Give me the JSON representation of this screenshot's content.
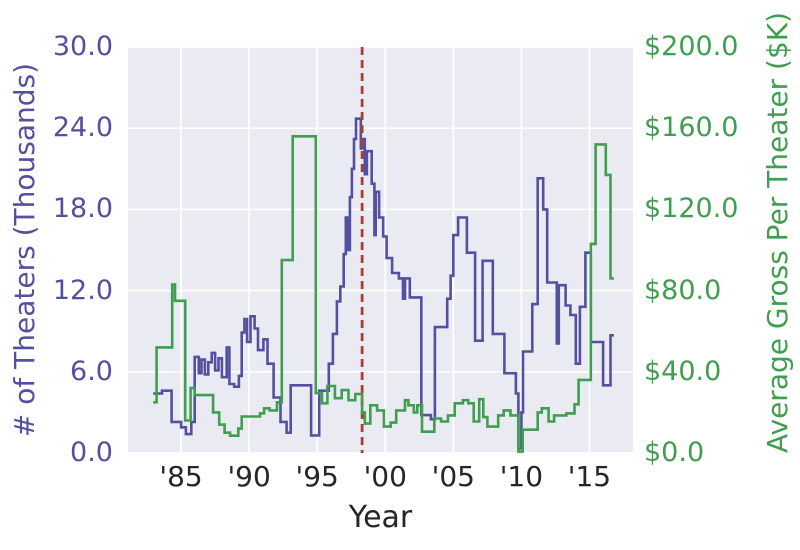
{
  "chart_data": {
    "type": "line",
    "subtype": "step-post",
    "title": "",
    "xlabel": "Year",
    "grid": true,
    "legend": false,
    "x_range": [
      1981.1,
      2018.2
    ],
    "data_end_x": 2016.8,
    "x_ticks": [
      {
        "x": 1985,
        "label": "'85"
      },
      {
        "x": 1990,
        "label": "'90"
      },
      {
        "x": 1995,
        "label": "'95"
      },
      {
        "x": 2000,
        "label": "'00"
      },
      {
        "x": 2005,
        "label": "'05"
      },
      {
        "x": 2010,
        "label": "'10"
      },
      {
        "x": 2015,
        "label": "'15"
      }
    ],
    "axes": {
      "left": {
        "label": "# of Theaters (Thousands)",
        "lim": [
          0,
          30
        ],
        "color": "#53519F",
        "ticks": [
          {
            "v": 0,
            "label": "0.0"
          },
          {
            "v": 6,
            "label": "6.0"
          },
          {
            "v": 12,
            "label": "12.0"
          },
          {
            "v": 18,
            "label": "18.0"
          },
          {
            "v": 24,
            "label": "24.0"
          },
          {
            "v": 30,
            "label": "30.0"
          }
        ]
      },
      "right": {
        "label": "Average Gross Per Theater ($K)",
        "lim": [
          0,
          200
        ],
        "color": "#3F9E4F",
        "ticks": [
          {
            "v": 0,
            "label": "$0.0"
          },
          {
            "v": 40,
            "label": "$40.0"
          },
          {
            "v": 80,
            "label": "$80.0"
          },
          {
            "v": 120,
            "label": "$120.0"
          },
          {
            "v": 160,
            "label": "$160.0"
          },
          {
            "v": 200,
            "label": "$200.0"
          }
        ]
      }
    },
    "vline": {
      "x": 1998.3,
      "style": "dashed",
      "color": "#A83E36"
    },
    "colors": {
      "plot_bg": "#EAEAF2",
      "grid": "#FFFFFF",
      "x_text": "#262626",
      "theaters_line": "#53519F",
      "gross_line": "#3F9E4F"
    },
    "series": [
      {
        "name": "# of Theaters (Thousands)",
        "axis": "left",
        "color": "#53519F",
        "points": [
          [
            1982.95,
            4.4
          ],
          [
            1983.6,
            4.6
          ],
          [
            1984.3,
            2.3
          ],
          [
            1985.0,
            1.9
          ],
          [
            1985.35,
            1.4
          ],
          [
            1985.75,
            2.3
          ],
          [
            1986.0,
            7.1
          ],
          [
            1986.3,
            5.9
          ],
          [
            1986.5,
            6.9
          ],
          [
            1986.75,
            5.8
          ],
          [
            1987.0,
            6.7
          ],
          [
            1987.25,
            7.4
          ],
          [
            1987.5,
            6.1
          ],
          [
            1987.75,
            7.0
          ],
          [
            1988.0,
            5.6
          ],
          [
            1988.35,
            7.8
          ],
          [
            1988.55,
            5.1
          ],
          [
            1988.9,
            4.9
          ],
          [
            1989.25,
            5.7
          ],
          [
            1989.45,
            8.9
          ],
          [
            1989.65,
            9.9
          ],
          [
            1989.85,
            8.2
          ],
          [
            1990.1,
            10.1
          ],
          [
            1990.4,
            9.2
          ],
          [
            1990.65,
            7.6
          ],
          [
            1991.05,
            8.4
          ],
          [
            1991.35,
            6.6
          ],
          [
            1991.8,
            4.1
          ],
          [
            1992.3,
            2.3
          ],
          [
            1992.75,
            1.5
          ],
          [
            1993.05,
            5.0
          ],
          [
            1994.55,
            1.3
          ],
          [
            1995.15,
            4.6
          ],
          [
            1995.85,
            6.6
          ],
          [
            1996.15,
            8.8
          ],
          [
            1996.45,
            11.2
          ],
          [
            1996.7,
            12.3
          ],
          [
            1996.95,
            14.7
          ],
          [
            1997.1,
            17.4
          ],
          [
            1997.25,
            15.0
          ],
          [
            1997.4,
            18.9
          ],
          [
            1997.55,
            21.0
          ],
          [
            1997.7,
            23.2
          ],
          [
            1997.85,
            24.7
          ],
          [
            1998.2,
            22.5
          ],
          [
            1998.35,
            23.2
          ],
          [
            1998.5,
            20.6
          ],
          [
            1998.65,
            22.3
          ],
          [
            1999.0,
            19.9
          ],
          [
            1999.2,
            16.1
          ],
          [
            1999.3,
            19.3
          ],
          [
            1999.55,
            17.4
          ],
          [
            1999.85,
            16.0
          ],
          [
            2000.1,
            14.4
          ],
          [
            2000.5,
            13.3
          ],
          [
            2001.0,
            12.9
          ],
          [
            2001.3,
            11.4
          ],
          [
            2001.45,
            12.9
          ],
          [
            2001.8,
            11.5
          ],
          [
            2002.65,
            2.8
          ],
          [
            2003.35,
            2.5
          ],
          [
            2003.65,
            9.3
          ],
          [
            2004.55,
            11.4
          ],
          [
            2004.8,
            13.1
          ],
          [
            2005.0,
            16.1
          ],
          [
            2005.35,
            17.4
          ],
          [
            2006.0,
            14.8
          ],
          [
            2006.6,
            8.3
          ],
          [
            2007.15,
            14.2
          ],
          [
            2007.9,
            8.8
          ],
          [
            2008.75,
            5.9
          ],
          [
            2009.6,
            4.4
          ],
          [
            2009.78,
            0.35
          ],
          [
            2010.0,
            3.0
          ],
          [
            2010.12,
            7.5
          ],
          [
            2010.8,
            11.0
          ],
          [
            2011.2,
            20.3
          ],
          [
            2011.6,
            18.0
          ],
          [
            2011.9,
            12.6
          ],
          [
            2012.6,
            8.1
          ],
          [
            2012.75,
            12.4
          ],
          [
            2013.25,
            10.9
          ],
          [
            2013.6,
            10.2
          ],
          [
            2014.0,
            6.6
          ],
          [
            2014.3,
            10.8
          ],
          [
            2014.7,
            14.8
          ],
          [
            2015.1,
            8.2
          ],
          [
            2016.0,
            5.0
          ],
          [
            2016.55,
            8.7
          ]
        ]
      },
      {
        "name": "Average Gross Per Theater ($K)",
        "axis": "right",
        "color": "#3F9E4F",
        "points": [
          [
            1982.95,
            25
          ],
          [
            1983.2,
            52
          ],
          [
            1984.35,
            83
          ],
          [
            1984.55,
            75
          ],
          [
            1985.3,
            16
          ],
          [
            1985.7,
            32
          ],
          [
            1986.0,
            28.5
          ],
          [
            1987.35,
            20
          ],
          [
            1987.8,
            14
          ],
          [
            1988.2,
            10
          ],
          [
            1988.6,
            8.5
          ],
          [
            1989.2,
            12
          ],
          [
            1989.45,
            18
          ],
          [
            1990.8,
            19.5
          ],
          [
            1991.1,
            22
          ],
          [
            1991.5,
            21
          ],
          [
            1992.05,
            25
          ],
          [
            1992.4,
            95
          ],
          [
            1993.2,
            156
          ],
          [
            1994.9,
            29.5
          ],
          [
            1995.35,
            24.5
          ],
          [
            1995.75,
            33
          ],
          [
            1996.3,
            27
          ],
          [
            1996.8,
            31
          ],
          [
            1997.3,
            26
          ],
          [
            1997.8,
            29
          ],
          [
            1998.3,
            20
          ],
          [
            1998.5,
            14.5
          ],
          [
            1998.9,
            23.5
          ],
          [
            1999.4,
            21
          ],
          [
            1999.9,
            13
          ],
          [
            2000.4,
            15
          ],
          [
            2000.8,
            21
          ],
          [
            2001.45,
            26
          ],
          [
            2001.7,
            23.5
          ],
          [
            2002.1,
            20
          ],
          [
            2002.35,
            23.5
          ],
          [
            2002.7,
            10.5
          ],
          [
            2003.6,
            17
          ],
          [
            2004.1,
            15.5
          ],
          [
            2004.6,
            18.5
          ],
          [
            2005.1,
            24.5
          ],
          [
            2005.7,
            26
          ],
          [
            2006.1,
            24.5
          ],
          [
            2006.5,
            15.5
          ],
          [
            2006.9,
            26.5
          ],
          [
            2007.2,
            17.7
          ],
          [
            2007.5,
            13
          ],
          [
            2008.3,
            18.5
          ],
          [
            2008.7,
            21
          ],
          [
            2009.2,
            18.5
          ],
          [
            2009.78,
            0.7
          ],
          [
            2010.1,
            11.5
          ],
          [
            2011.2,
            20
          ],
          [
            2011.5,
            22
          ],
          [
            2012.0,
            15.5
          ],
          [
            2012.4,
            18.5
          ],
          [
            2013.3,
            19.5
          ],
          [
            2013.9,
            24
          ],
          [
            2014.2,
            36
          ],
          [
            2015.1,
            103
          ],
          [
            2015.45,
            152
          ],
          [
            2016.2,
            137
          ],
          [
            2016.55,
            86
          ]
        ]
      }
    ]
  }
}
